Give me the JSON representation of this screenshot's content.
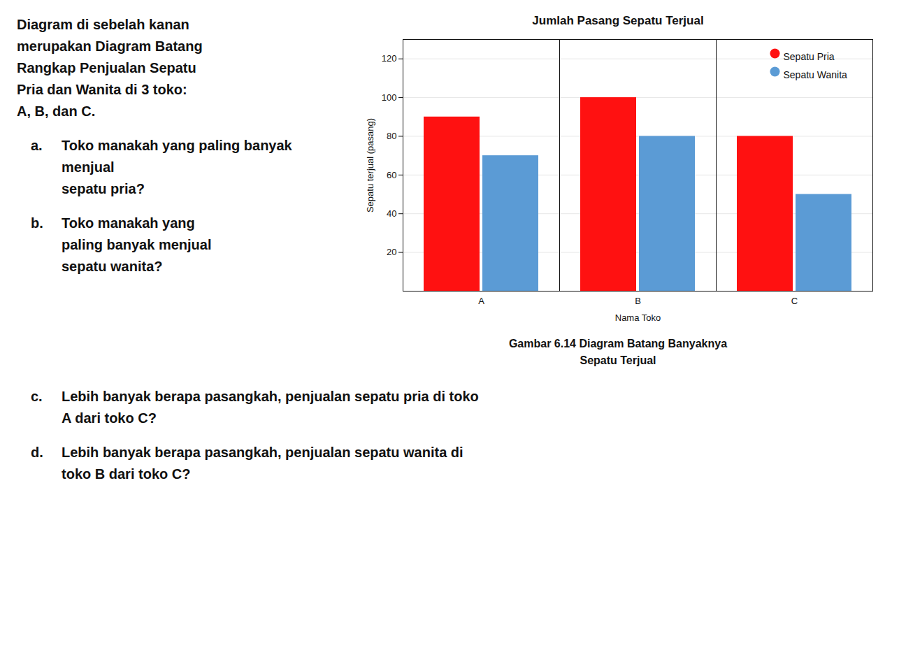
{
  "chart_data": {
    "type": "bar",
    "title": "Jumlah Pasang Sepatu Terjual",
    "xlabel": "Nama Toko",
    "ylabel": "Sepatu terjual (pasang)",
    "categories": [
      "A",
      "B",
      "C"
    ],
    "series": [
      {
        "name": "Sepatu Pria",
        "color": "#FF1111",
        "values": [
          90,
          100,
          80
        ]
      },
      {
        "name": "Sepatu Wanita",
        "color": "#5B9BD5",
        "values": [
          70,
          80,
          50
        ]
      }
    ],
    "ylim": [
      0,
      130
    ],
    "yticks": [
      20,
      40,
      60,
      80,
      100,
      120
    ],
    "grid": true,
    "legend": "upper right",
    "caption": "Gambar 6.14 Diagram Batang Banyaknya\nSepatu Terjual",
    "annotations": [
      {
        "text": "Diagram di sebelah kanan\nmerupakan Diagram Batang\nRangkap Penjualan Sepatu\nPria dan Wanita di 3 toko:\nA, B, dan C."
      },
      {
        "label": "a.",
        "text": "Toko manakah yang paling banyak menjual\nsepatu pria?"
      },
      {
        "label": "b.",
        "text": "Toko manakah yang\npaling banyak menjual\nsepatu wanita?"
      },
      {
        "label": "c.",
        "text": "Lebih banyak berapa pasangkah, penjualan sepatu pria di toko\nA dari toko C?"
      },
      {
        "label": "d.",
        "text": "Lebih banyak berapa pasangkah, penjualan sepatu wanita di\ntoko B dari toko C?"
      }
    ]
  }
}
